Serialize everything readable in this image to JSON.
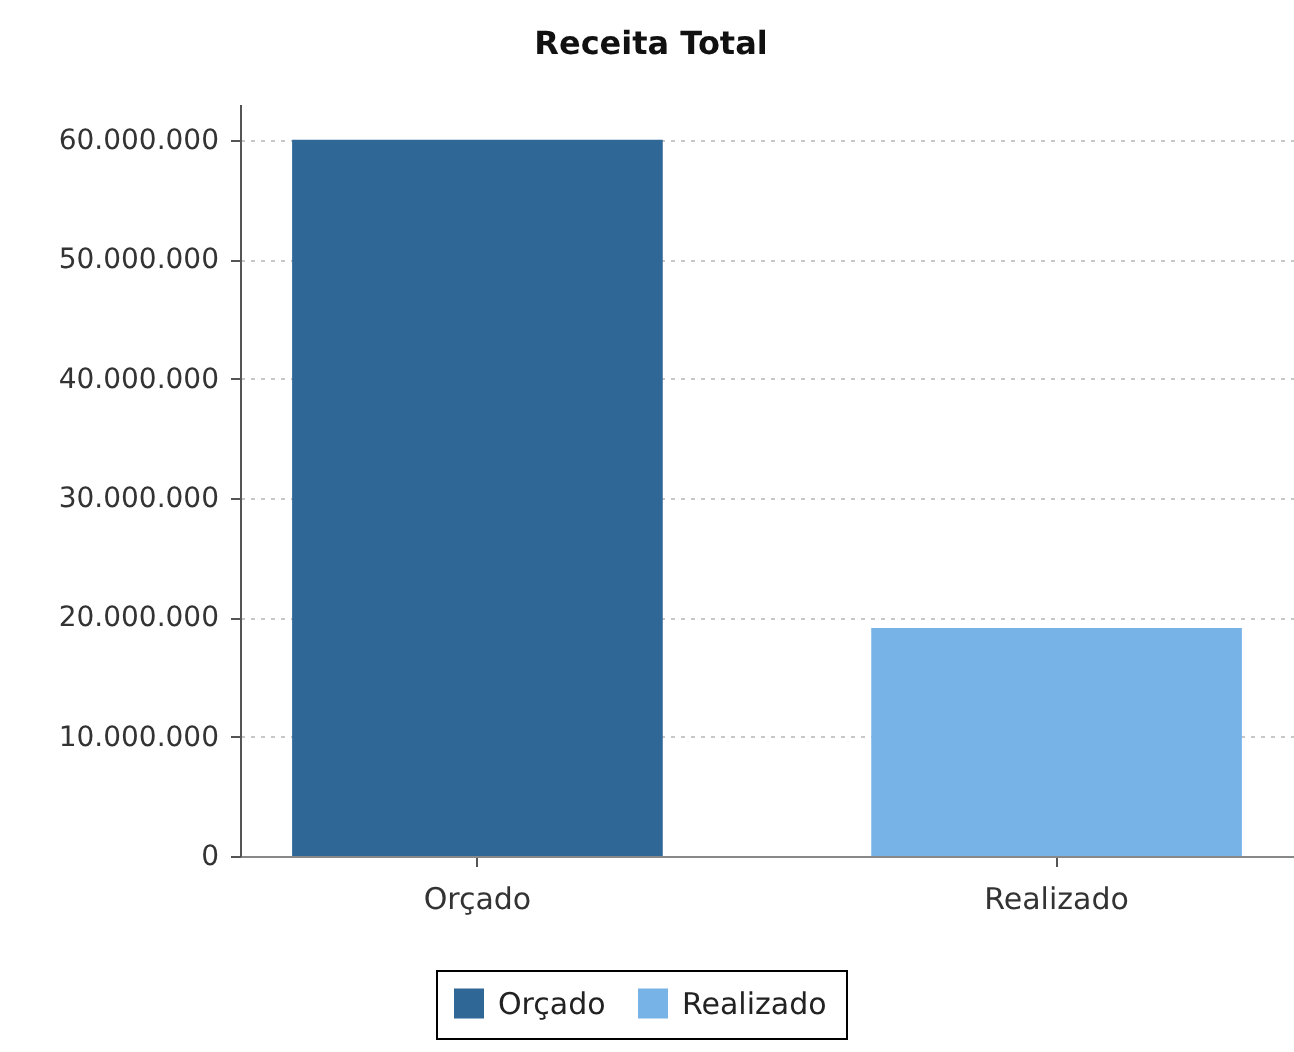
{
  "chart_data": {
    "type": "bar",
    "title": "Receita Total",
    "categories": [
      "Orçado",
      "Realizado"
    ],
    "series": [
      {
        "name": "Orçado",
        "color": "#2f6796",
        "values": [
          60000000,
          null
        ]
      },
      {
        "name": "Realizado",
        "color": "#78b3e8",
        "values": [
          null,
          19100000
        ]
      }
    ],
    "ylim": [
      0,
      63000000
    ],
    "yticks": [
      0,
      {
        "value": 10000000,
        "label": "10.000.000"
      },
      {
        "value": 20000000,
        "label": "20.000.000"
      },
      {
        "value": 30000000,
        "label": "30.000.000"
      },
      {
        "value": 40000000,
        "label": "40.000.000"
      },
      {
        "value": 50000000,
        "label": "50.000.000"
      },
      {
        "value": 60000000,
        "label": "60.000.000"
      }
    ],
    "grid": "y",
    "legend": "bottom"
  }
}
